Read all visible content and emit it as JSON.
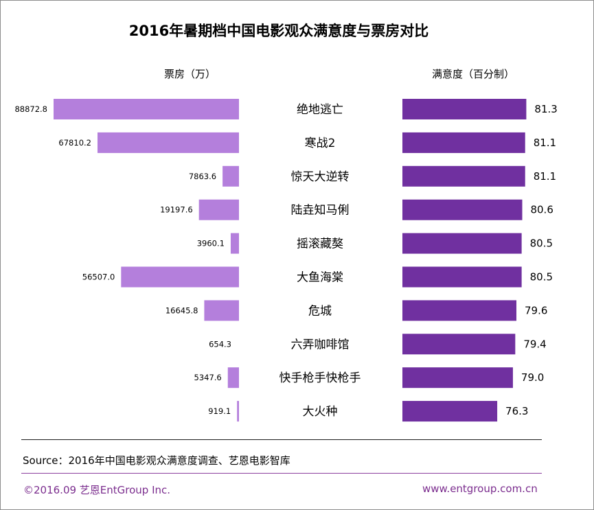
{
  "title": "2016年暑期档中国电影观众满意度与票房对比",
  "left_header": "票房（万）",
  "right_header": "满意度（百分制）",
  "source": "Source：2016年中国电影观众满意度调查、艺恩电影智库",
  "copyright": "©2016.09  艺恩EntGroup Inc.",
  "website": "www.entgroup.com.cn",
  "colors": {
    "box_office_bar": "#b47fdc",
    "satisfaction_bar": "#7030a0",
    "footer_text": "#7b2d8e"
  },
  "chart_data": {
    "type": "bar",
    "layout": "butterfly",
    "categories": [
      "绝地逃亡",
      "寒战2",
      "惊天大逆转",
      "陆垚知马俐",
      "摇滚藏獒",
      "大鱼海棠",
      "危城",
      "六弄咖啡馆",
      "快手枪手快枪手",
      "大火种"
    ],
    "series": [
      {
        "name": "票房（万）",
        "values": [
          88872.8,
          67810.2,
          7863.6,
          19197.6,
          3960.1,
          56507.0,
          16645.8,
          654.3,
          5347.6,
          919.1
        ],
        "labels": [
          "88872.8",
          "67810.2",
          "7863.6",
          "19197.6",
          "3960.1",
          "56507.0",
          "16645.8",
          "654.3",
          "5347.6",
          "919.1"
        ]
      },
      {
        "name": "满意度（百分制）",
        "values": [
          81.3,
          81.1,
          81.1,
          80.6,
          80.5,
          80.5,
          79.6,
          79.4,
          79.0,
          76.3
        ],
        "labels": [
          "81.3",
          "81.1",
          "81.1",
          "80.6",
          "80.5",
          "80.5",
          "79.6",
          "79.4",
          "79.0",
          "76.3"
        ]
      }
    ]
  }
}
